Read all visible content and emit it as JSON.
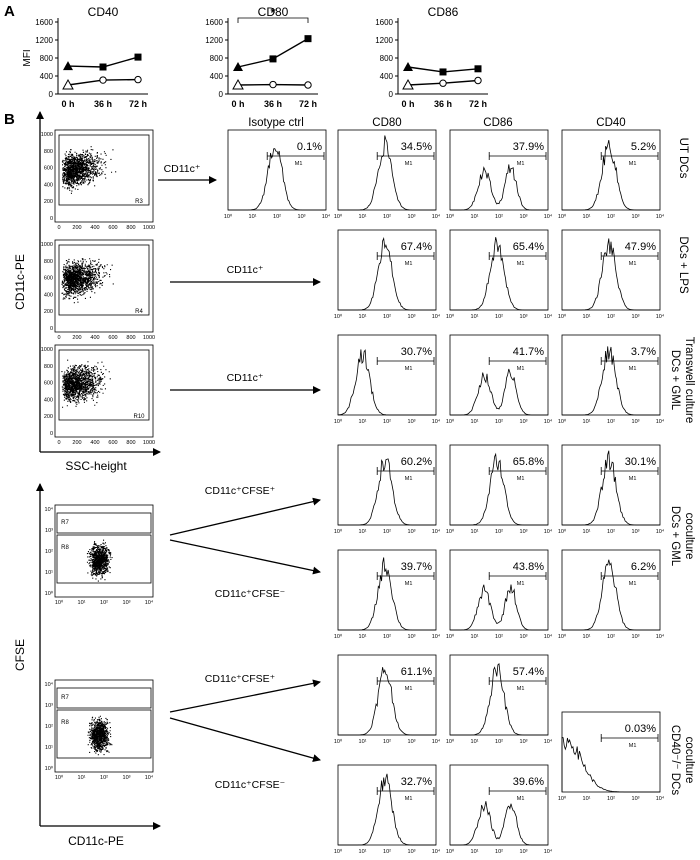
{
  "panels": {
    "a_label": "A",
    "b_label": "B"
  },
  "chart_data": [
    {
      "type": "line",
      "title": "CD40",
      "ylabel": "MFI",
      "categories": [
        "0 h",
        "36 h",
        "72 h"
      ],
      "yticks": [
        "0",
        "400",
        "800",
        "1200",
        "1600"
      ],
      "ylim": [
        0,
        1600
      ],
      "series": [
        {
          "marker": "filled",
          "values": [
            620,
            600,
            820
          ]
        },
        {
          "marker": "open",
          "values": [
            200,
            310,
            320
          ]
        }
      ]
    },
    {
      "type": "line",
      "title": "CD80",
      "ylabel": "",
      "categories": [
        "0 h",
        "36 h",
        "72 h"
      ],
      "yticks": [
        "0",
        "400",
        "800",
        "1200",
        "1600"
      ],
      "ylim": [
        0,
        1600
      ],
      "significance": "*",
      "series": [
        {
          "marker": "filled",
          "values": [
            600,
            780,
            1230
          ]
        },
        {
          "marker": "open",
          "values": [
            200,
            210,
            200
          ]
        }
      ]
    },
    {
      "type": "line",
      "title": "CD86",
      "ylabel": "",
      "categories": [
        "0 h",
        "36 h",
        "72 h"
      ],
      "yticks": [
        "0",
        "400",
        "800",
        "1200",
        "1600"
      ],
      "ylim": [
        0,
        1600
      ],
      "series": [
        {
          "marker": "filled",
          "values": [
            600,
            490,
            560
          ]
        },
        {
          "marker": "open",
          "values": [
            200,
            240,
            300
          ]
        }
      ]
    }
  ],
  "column_headers": [
    "Isotype ctrl",
    "CD80",
    "CD86",
    "CD40"
  ],
  "gate_marker": "M1",
  "hist_ticks": [
    "10⁰",
    "10¹",
    "10²",
    "10³",
    "10⁴"
  ],
  "scatter_axes": {
    "group1_y": "CD11c-PE",
    "group1_x": "SSC-height",
    "group2_y": "CFSE",
    "group2_x": "CD11c-PE"
  },
  "scatter_plots": [
    {
      "gates": [
        "R3"
      ],
      "ticks": [
        "0",
        "200",
        "400",
        "600",
        "800",
        "1000"
      ]
    },
    {
      "gates": [
        "R4"
      ],
      "ticks": [
        "0",
        "200",
        "400",
        "600",
        "800",
        "1000"
      ]
    },
    {
      "gates": [
        "R10"
      ],
      "ticks": [
        "0",
        "200",
        "400",
        "600",
        "800",
        "1000"
      ]
    },
    {
      "gates": [
        "R7",
        "R8"
      ],
      "ticks": [
        "10⁰",
        "10¹",
        "10²",
        "10³",
        "10⁴"
      ]
    },
    {
      "gates": [
        "R7",
        "R8"
      ],
      "ticks": [
        "10⁰",
        "10¹",
        "10²",
        "10³",
        "10⁴"
      ]
    }
  ],
  "arrow_labels": [
    "CD11c⁺",
    "CD11c⁺",
    "CD11c⁺",
    "CD11c⁺CFSE⁺",
    "CD11c⁺CFSE⁻",
    "CD11c⁺CFSE⁺",
    "CD11c⁺CFSE⁻"
  ],
  "histogram_rows": [
    {
      "values": [
        "0.1%",
        "34.5%",
        "37.9%",
        "5.2%"
      ]
    },
    {
      "values": [
        null,
        "67.4%",
        "65.4%",
        "47.9%"
      ]
    },
    {
      "values": [
        null,
        "30.7%",
        "41.7%",
        "3.7%"
      ]
    },
    {
      "values": [
        null,
        "60.2%",
        "65.8%",
        "30.1%"
      ]
    },
    {
      "values": [
        null,
        "39.7%",
        "43.8%",
        "6.2%"
      ]
    },
    {
      "values": [
        null,
        "61.1%",
        "57.4%",
        null
      ]
    },
    {
      "values": [
        null,
        "32.7%",
        "39.6%",
        null
      ]
    }
  ],
  "cd40_ko_histogram": "0.03%",
  "row_labels": {
    "ut": "UT DCs",
    "lps": "DCs + LPS",
    "transwell_1": "DCs + GML",
    "transwell_2": "Transwell culture",
    "coculture_1": "DCs + GML",
    "coculture_2": "coculture",
    "ko_1": "CD40⁻/⁻ DCs",
    "ko_2": "coculture"
  }
}
